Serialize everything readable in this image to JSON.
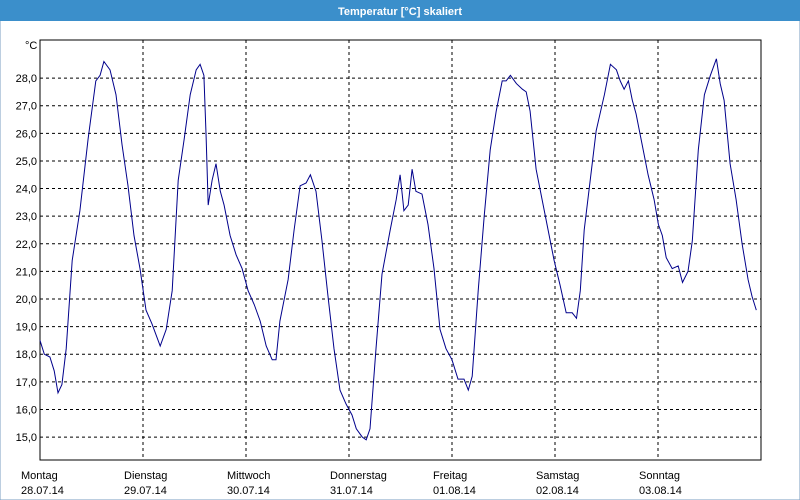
{
  "chart_data": {
    "type": "line",
    "title": "Temperatur [°C] skaliert",
    "y_unit": "°C",
    "xlim": [
      0,
      168
    ],
    "ylim": [
      14.17,
      29.38
    ],
    "xticks": [
      {
        "value": 0,
        "label": "Montag"
      },
      {
        "value": 24,
        "label": "Dienstag"
      },
      {
        "value": 48,
        "label": "Mittwoch"
      },
      {
        "value": 72,
        "label": "Donnerstag"
      },
      {
        "value": 96,
        "label": "Freitag"
      },
      {
        "value": 120,
        "label": "Samstag"
      },
      {
        "value": 144,
        "label": "Sonntag"
      }
    ],
    "xtick_dates": [
      "28.07.14",
      "29.07.14",
      "30.07.14",
      "31.07.14",
      "01.08.14",
      "02.08.14",
      "03.08.14"
    ],
    "yticks": [
      {
        "value": 15,
        "label": "15,0"
      },
      {
        "value": 16,
        "label": "16,0"
      },
      {
        "value": 17,
        "label": "17,0"
      },
      {
        "value": 18,
        "label": "18,0"
      },
      {
        "value": 19,
        "label": "19,0"
      },
      {
        "value": 20,
        "label": "20,0"
      },
      {
        "value": 21,
        "label": "21,0"
      },
      {
        "value": 22,
        "label": "22,0"
      },
      {
        "value": 23,
        "label": "23,0"
      },
      {
        "value": 24,
        "label": "24,0"
      },
      {
        "value": 25,
        "label": "25,0"
      },
      {
        "value": 26,
        "label": "26,0"
      },
      {
        "value": 27,
        "label": "27,0"
      },
      {
        "value": 28,
        "label": "28,0"
      }
    ],
    "grid": true,
    "color": "#00008b",
    "x": [
      0,
      1,
      2.3,
      3.3,
      4.2,
      5.1,
      6.1,
      7.5,
      9.3,
      11.2,
      13,
      14,
      14.9,
      16.3,
      17.7,
      19.1,
      20.5,
      21.9,
      23.3,
      24.7,
      26.1,
      28,
      29.4,
      30.8,
      32.2,
      33.6,
      35,
      36.4,
      37.3,
      38.2,
      38.7,
      39.2,
      40.1,
      41,
      42,
      42.9,
      44.3,
      45.7,
      47.1,
      48.5,
      49.9,
      51.3,
      52.7,
      54.1,
      55,
      55.9,
      57.8,
      59.2,
      60.6,
      62,
      63,
      64.3,
      65.7,
      67.1,
      68.5,
      69.9,
      71.3,
      72.7,
      73.7,
      75.1,
      76,
      76.9,
      78.3,
      79.7,
      81.6,
      83,
      83.9,
      84.4,
      84.8,
      85.8,
      86.7,
      87.6,
      89,
      90.4,
      91.8,
      93.2,
      94.6,
      96,
      97.4,
      98.8,
      99.8,
      100.7,
      102.1,
      103.5,
      104.9,
      106.3,
      107.7,
      108.6,
      109.6,
      111,
      112.4,
      113.3,
      114.2,
      115.6,
      117,
      118.4,
      119.8,
      121.2,
      122.6,
      124,
      125,
      125.9,
      126.8,
      128.2,
      129.6,
      131.5,
      132.9,
      134.3,
      135.2,
      136.1,
      137.1,
      138,
      138.9,
      140.3,
      141.7,
      143.1,
      144.1,
      145,
      145.9,
      147.3,
      148.7,
      149.7,
      151,
      152,
      153.4,
      154.8,
      156.2,
      157.6,
      158.5,
      159.4,
      160.8,
      162.2,
      163.6,
      165,
      165.9,
      166.9
    ],
    "values": [
      18.5,
      18.0,
      17.9,
      17.4,
      16.6,
      16.9,
      18.2,
      21.4,
      23.2,
      25.8,
      27.9,
      28.1,
      28.6,
      28.3,
      27.4,
      25.6,
      24.1,
      22.3,
      21.1,
      19.6,
      19.1,
      18.3,
      18.9,
      20.3,
      24.3,
      25.8,
      27.4,
      28.3,
      28.5,
      28.1,
      25.9,
      23.4,
      24.3,
      24.9,
      23.9,
      23.4,
      22.3,
      21.6,
      21.1,
      20.3,
      19.8,
      19.2,
      18.3,
      17.8,
      17.8,
      19.2,
      20.7,
      22.5,
      24.1,
      24.2,
      24.5,
      23.9,
      22.1,
      20.1,
      18.2,
      16.7,
      16.2,
      15.8,
      15.3,
      15.0,
      14.9,
      15.3,
      18.2,
      20.9,
      22.5,
      23.6,
      24.5,
      23.8,
      23.2,
      23.4,
      24.7,
      23.9,
      23.8,
      22.7,
      21.1,
      18.9,
      18.2,
      17.8,
      17.1,
      17.1,
      16.7,
      17.2,
      20.3,
      23.0,
      25.4,
      26.8,
      27.9,
      27.9,
      28.1,
      27.8,
      27.6,
      27.5,
      26.8,
      24.7,
      23.6,
      22.5,
      21.4,
      20.5,
      19.5,
      19.5,
      19.3,
      20.3,
      22.5,
      24.3,
      26.1,
      27.4,
      28.5,
      28.3,
      27.9,
      27.6,
      27.9,
      27.2,
      26.7,
      25.6,
      24.5,
      23.6,
      22.7,
      22.3,
      21.5,
      21.1,
      21.2,
      20.6,
      21.0,
      22.1,
      25.4,
      27.4,
      28.1,
      28.7,
      27.8,
      27.2,
      24.9,
      23.6,
      22.0,
      20.7,
      20.1,
      19.6
    ]
  }
}
